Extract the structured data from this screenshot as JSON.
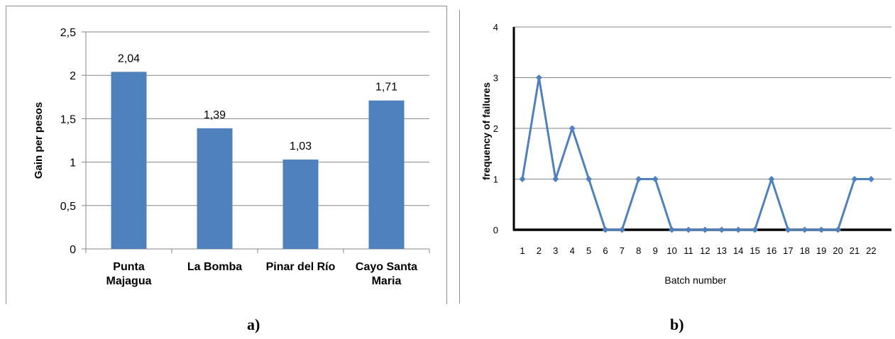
{
  "captions": {
    "a": "a)",
    "b": "b)"
  },
  "chart_data": [
    {
      "type": "bar",
      "title": "",
      "xlabel": "",
      "ylabel": "Gain per pesos",
      "ylim": [
        0,
        2.5
      ],
      "yticks": [
        "0",
        "0,5",
        "1",
        "1,5",
        "2",
        "2,5"
      ],
      "ytick_values": [
        0,
        0.5,
        1,
        1.5,
        2,
        2.5
      ],
      "categories": [
        [
          "Punta",
          "Majagua"
        ],
        [
          "La Bomba"
        ],
        [
          "Pinar del Río"
        ],
        [
          "Cayo Santa",
          "Maria"
        ]
      ],
      "values": [
        2.04,
        1.39,
        1.03,
        1.71
      ],
      "data_labels": [
        "2,04",
        "1,39",
        "1,03",
        "1,71"
      ],
      "grid": true,
      "bar_color": "#4f81bd"
    },
    {
      "type": "line",
      "title": "",
      "xlabel": "Batch number",
      "ylabel": "frequency of failures",
      "ylim": [
        0,
        4
      ],
      "yticks": [
        "0",
        "1",
        "2",
        "3",
        "4"
      ],
      "ytick_values": [
        0,
        1,
        2,
        3,
        4
      ],
      "x": [
        "1",
        "2",
        "3",
        "4",
        "5",
        "6",
        "7",
        "8",
        "9",
        "10",
        "11",
        "12",
        "13",
        "14",
        "15",
        "16",
        "17",
        "18",
        "19",
        "20",
        "21",
        "22"
      ],
      "values": [
        1,
        3,
        1,
        2,
        1,
        0,
        0,
        1,
        1,
        0,
        0,
        0,
        0,
        0,
        0,
        1,
        0,
        0,
        0,
        0,
        1,
        1
      ],
      "grid": true,
      "line_color": "#4f81bd",
      "marker": "diamond"
    }
  ]
}
